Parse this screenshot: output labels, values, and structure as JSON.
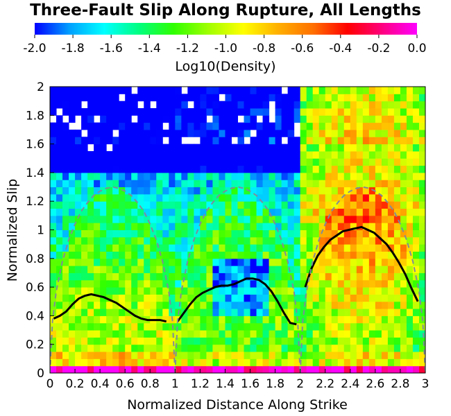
{
  "chart_data": {
    "type": "heatmap",
    "title": "Three-Fault Slip Along Rupture, All Lengths",
    "colorbar": {
      "label": "Log10(Density)",
      "min": -2.0,
      "max": 0.0,
      "ticks": [
        "-2.0",
        "-1.8",
        "-1.6",
        "-1.4",
        "-1.2",
        "-1.0",
        "-0.8",
        "-0.6",
        "-0.4",
        "-0.2",
        "0.0"
      ],
      "colors": [
        "#0000ff",
        "#00a0ff",
        "#00ffff",
        "#00ff80",
        "#30ff00",
        "#a0ff00",
        "#ffff00",
        "#ffb000",
        "#ff7000",
        "#ff0000",
        "#ff0080",
        "#ff00ff"
      ]
    },
    "xlabel": "Normalized Distance Along Strike",
    "ylabel": "Normalized Slip",
    "xlim": [
      0,
      3
    ],
    "ylim": [
      0,
      2
    ],
    "xticks": [
      "0",
      "0.2",
      "0.4",
      "0.6",
      "0.8",
      "1",
      "1.2",
      "1.4",
      "1.6",
      "1.8",
      "2",
      "2.2",
      "2.4",
      "2.6",
      "2.8",
      "3"
    ],
    "yticks": [
      "0",
      "0.2",
      "0.4",
      "0.6",
      "0.8",
      "1",
      "1.2",
      "1.4",
      "1.6",
      "1.8",
      "2"
    ],
    "grid": false,
    "series": [
      {
        "style": "solid-black",
        "points": [
          [
            0.03,
            0.38
          ],
          [
            0.08,
            0.4
          ],
          [
            0.13,
            0.43
          ],
          [
            0.18,
            0.48
          ],
          [
            0.23,
            0.52
          ],
          [
            0.28,
            0.54
          ],
          [
            0.33,
            0.55
          ],
          [
            0.38,
            0.54
          ],
          [
            0.43,
            0.53
          ],
          [
            0.48,
            0.51
          ],
          [
            0.53,
            0.49
          ],
          [
            0.58,
            0.46
          ],
          [
            0.63,
            0.43
          ],
          [
            0.68,
            0.4
          ],
          [
            0.73,
            0.38
          ],
          [
            0.78,
            0.37
          ],
          [
            0.83,
            0.37
          ],
          [
            0.88,
            0.37
          ],
          [
            0.93,
            0.36
          ]
        ]
      },
      {
        "style": "solid-black",
        "points": [
          [
            1.02,
            0.36
          ],
          [
            1.07,
            0.42
          ],
          [
            1.12,
            0.48
          ],
          [
            1.17,
            0.53
          ],
          [
            1.22,
            0.56
          ],
          [
            1.27,
            0.58
          ],
          [
            1.32,
            0.6
          ],
          [
            1.37,
            0.61
          ],
          [
            1.42,
            0.61
          ],
          [
            1.47,
            0.62
          ],
          [
            1.52,
            0.64
          ],
          [
            1.57,
            0.66
          ],
          [
            1.62,
            0.66
          ],
          [
            1.67,
            0.65
          ],
          [
            1.72,
            0.62
          ],
          [
            1.77,
            0.57
          ],
          [
            1.82,
            0.5
          ],
          [
            1.87,
            0.42
          ],
          [
            1.92,
            0.35
          ],
          [
            1.97,
            0.34
          ]
        ]
      },
      {
        "style": "solid-black",
        "points": [
          [
            2.04,
            0.6
          ],
          [
            2.09,
            0.73
          ],
          [
            2.14,
            0.82
          ],
          [
            2.19,
            0.88
          ],
          [
            2.24,
            0.93
          ],
          [
            2.29,
            0.96
          ],
          [
            2.34,
            0.99
          ],
          [
            2.39,
            1.0
          ],
          [
            2.44,
            1.01
          ],
          [
            2.49,
            1.02
          ],
          [
            2.54,
            1.0
          ],
          [
            2.59,
            0.98
          ],
          [
            2.64,
            0.94
          ],
          [
            2.69,
            0.9
          ],
          [
            2.74,
            0.84
          ],
          [
            2.79,
            0.77
          ],
          [
            2.84,
            0.69
          ],
          [
            2.89,
            0.59
          ],
          [
            2.94,
            0.5
          ]
        ]
      },
      {
        "style": "dashed-gray",
        "points": [
          [
            0.0,
            0.0
          ],
          [
            0.02,
            0.36
          ],
          [
            0.05,
            0.57
          ],
          [
            0.1,
            0.78
          ],
          [
            0.15,
            0.93
          ],
          [
            0.2,
            1.04
          ],
          [
            0.25,
            1.13
          ],
          [
            0.3,
            1.19
          ],
          [
            0.35,
            1.24
          ],
          [
            0.4,
            1.27
          ],
          [
            0.45,
            1.29
          ],
          [
            0.5,
            1.3
          ],
          [
            0.55,
            1.29
          ],
          [
            0.6,
            1.27
          ],
          [
            0.65,
            1.24
          ],
          [
            0.7,
            1.19
          ],
          [
            0.75,
            1.13
          ],
          [
            0.8,
            1.04
          ],
          [
            0.85,
            0.93
          ],
          [
            0.9,
            0.78
          ],
          [
            0.95,
            0.57
          ],
          [
            0.98,
            0.36
          ],
          [
            1.0,
            0.0
          ]
        ]
      },
      {
        "style": "dashed-gray",
        "points": [
          [
            1.0,
            0.0
          ],
          [
            1.02,
            0.36
          ],
          [
            1.05,
            0.57
          ],
          [
            1.1,
            0.78
          ],
          [
            1.15,
            0.93
          ],
          [
            1.2,
            1.04
          ],
          [
            1.25,
            1.13
          ],
          [
            1.3,
            1.19
          ],
          [
            1.35,
            1.24
          ],
          [
            1.4,
            1.27
          ],
          [
            1.45,
            1.29
          ],
          [
            1.5,
            1.3
          ],
          [
            1.55,
            1.29
          ],
          [
            1.6,
            1.27
          ],
          [
            1.65,
            1.24
          ],
          [
            1.7,
            1.19
          ],
          [
            1.75,
            1.13
          ],
          [
            1.8,
            1.04
          ],
          [
            1.85,
            0.93
          ],
          [
            1.9,
            0.78
          ],
          [
            1.95,
            0.57
          ],
          [
            1.98,
            0.36
          ],
          [
            2.0,
            0.0
          ]
        ]
      },
      {
        "style": "dashed-gray",
        "points": [
          [
            2.0,
            0.0
          ],
          [
            2.02,
            0.36
          ],
          [
            2.05,
            0.57
          ],
          [
            2.1,
            0.78
          ],
          [
            2.15,
            0.93
          ],
          [
            2.2,
            1.04
          ],
          [
            2.25,
            1.13
          ],
          [
            2.3,
            1.19
          ],
          [
            2.35,
            1.24
          ],
          [
            2.4,
            1.27
          ],
          [
            2.45,
            1.29
          ],
          [
            2.5,
            1.3
          ],
          [
            2.55,
            1.29
          ],
          [
            2.6,
            1.27
          ],
          [
            2.65,
            1.24
          ],
          [
            2.7,
            1.19
          ],
          [
            2.75,
            1.13
          ],
          [
            2.8,
            1.04
          ],
          [
            2.85,
            0.93
          ],
          [
            2.9,
            0.78
          ],
          [
            2.95,
            0.57
          ],
          [
            2.98,
            0.36
          ],
          [
            3.0,
            0.0
          ]
        ]
      }
    ],
    "heatmap": {
      "cols": 60,
      "rows": 40,
      "x_range": [
        0,
        3
      ],
      "y_range": [
        0,
        2
      ],
      "value_model": "approximate log10 density per segment, estimated from colors"
    }
  }
}
